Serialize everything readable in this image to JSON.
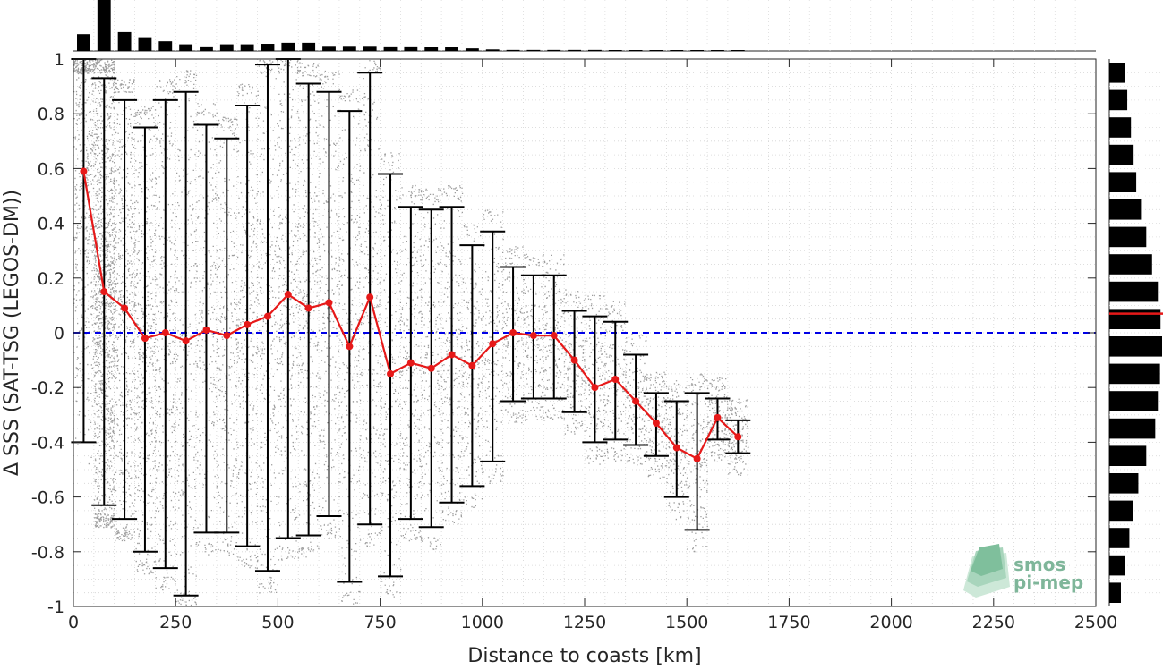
{
  "chart_data": {
    "type": "scatter",
    "xlabel": "Distance to coasts [km]",
    "ylabel": "Δ SSS (SAT-TSG (LEGOS-DM))",
    "xlim": [
      0,
      2500
    ],
    "ylim": [
      -1,
      1
    ],
    "xticks": [
      "0",
      "250",
      "500",
      "750",
      "1000",
      "1250",
      "1500",
      "1750",
      "2000",
      "2250",
      "2500"
    ],
    "yticks": [
      "-1",
      "-0.8",
      "-0.6",
      "-0.4",
      "-0.2",
      "0",
      "0.2",
      "0.4",
      "0.6",
      "0.8",
      "1"
    ],
    "grid": "minor dotted",
    "reference_line": {
      "y": 0,
      "color": "#0000e6",
      "style": "dashed"
    },
    "scatter_color": "#8c8c8c",
    "mean_color": "#e61919",
    "errorbar_color": "#000000",
    "bins": {
      "x": [
        25,
        75,
        125,
        175,
        225,
        275,
        325,
        375,
        425,
        475,
        525,
        575,
        625,
        675,
        725,
        775,
        825,
        875,
        925,
        975,
        1025,
        1075,
        1125,
        1175,
        1225,
        1275,
        1325,
        1375,
        1425,
        1475,
        1525,
        1575,
        1625
      ],
      "mean": [
        0.59,
        0.15,
        0.09,
        -0.02,
        0.0,
        -0.03,
        0.01,
        -0.01,
        0.03,
        0.06,
        0.14,
        0.09,
        0.11,
        -0.05,
        0.13,
        -0.15,
        -0.11,
        -0.13,
        -0.08,
        -0.12,
        -0.04,
        0.0,
        -0.01,
        -0.01,
        -0.1,
        -0.2,
        -0.17,
        -0.25,
        -0.33,
        -0.42,
        -0.46,
        -0.31,
        -0.38
      ],
      "upper": [
        1.0,
        0.93,
        0.85,
        0.75,
        0.85,
        0.88,
        0.76,
        0.71,
        0.83,
        0.98,
        1.0,
        0.91,
        0.88,
        0.81,
        0.95,
        0.58,
        0.46,
        0.45,
        0.46,
        0.32,
        0.37,
        0.24,
        0.21,
        0.21,
        0.08,
        0.06,
        0.04,
        -0.08,
        -0.22,
        -0.25,
        -0.22,
        -0.24,
        -0.32
      ],
      "lower": [
        -0.4,
        -0.63,
        -0.68,
        -0.8,
        -0.86,
        -0.96,
        -0.73,
        -0.73,
        -0.78,
        -0.87,
        -0.75,
        -0.74,
        -0.67,
        -0.91,
        -0.7,
        -0.89,
        -0.68,
        -0.71,
        -0.62,
        -0.56,
        -0.47,
        -0.25,
        -0.24,
        -0.24,
        -0.29,
        -0.4,
        -0.39,
        -0.41,
        -0.45,
        -0.6,
        -0.72,
        -0.39,
        -0.44
      ]
    },
    "top_histogram": {
      "x": [
        25,
        75,
        125,
        175,
        225,
        275,
        325,
        375,
        425,
        475,
        525,
        575,
        625,
        675,
        725,
        775,
        825,
        875,
        925,
        975,
        1025,
        1075,
        1125,
        1175,
        1225,
        1275,
        1325,
        1375,
        1425,
        1475,
        1525,
        1575,
        1625
      ],
      "counts": [
        0.33,
        1.0,
        0.37,
        0.27,
        0.19,
        0.13,
        0.09,
        0.13,
        0.13,
        0.14,
        0.16,
        0.16,
        0.1,
        0.1,
        0.1,
        0.09,
        0.09,
        0.08,
        0.07,
        0.05,
        0.03,
        0.02,
        0.02,
        0.02,
        0.02,
        0.02,
        0.01,
        0.01,
        0.01,
        0.01,
        0.01,
        0.01,
        0.01
      ]
    },
    "right_histogram": {
      "y": [
        0.95,
        0.85,
        0.75,
        0.65,
        0.55,
        0.45,
        0.35,
        0.25,
        0.15,
        0.05,
        -0.05,
        -0.15,
        -0.25,
        -0.35,
        -0.45,
        -0.55,
        -0.65,
        -0.75,
        -0.85,
        -0.95
      ],
      "counts": [
        0.3,
        0.34,
        0.41,
        0.46,
        0.51,
        0.6,
        0.7,
        0.81,
        0.92,
        0.97,
        1.0,
        0.96,
        0.92,
        0.87,
        0.7,
        0.55,
        0.45,
        0.38,
        0.3,
        0.22
      ],
      "mean_marker": 0.07
    },
    "watermark": {
      "line1": "smos",
      "line2": "pi-mep"
    }
  }
}
